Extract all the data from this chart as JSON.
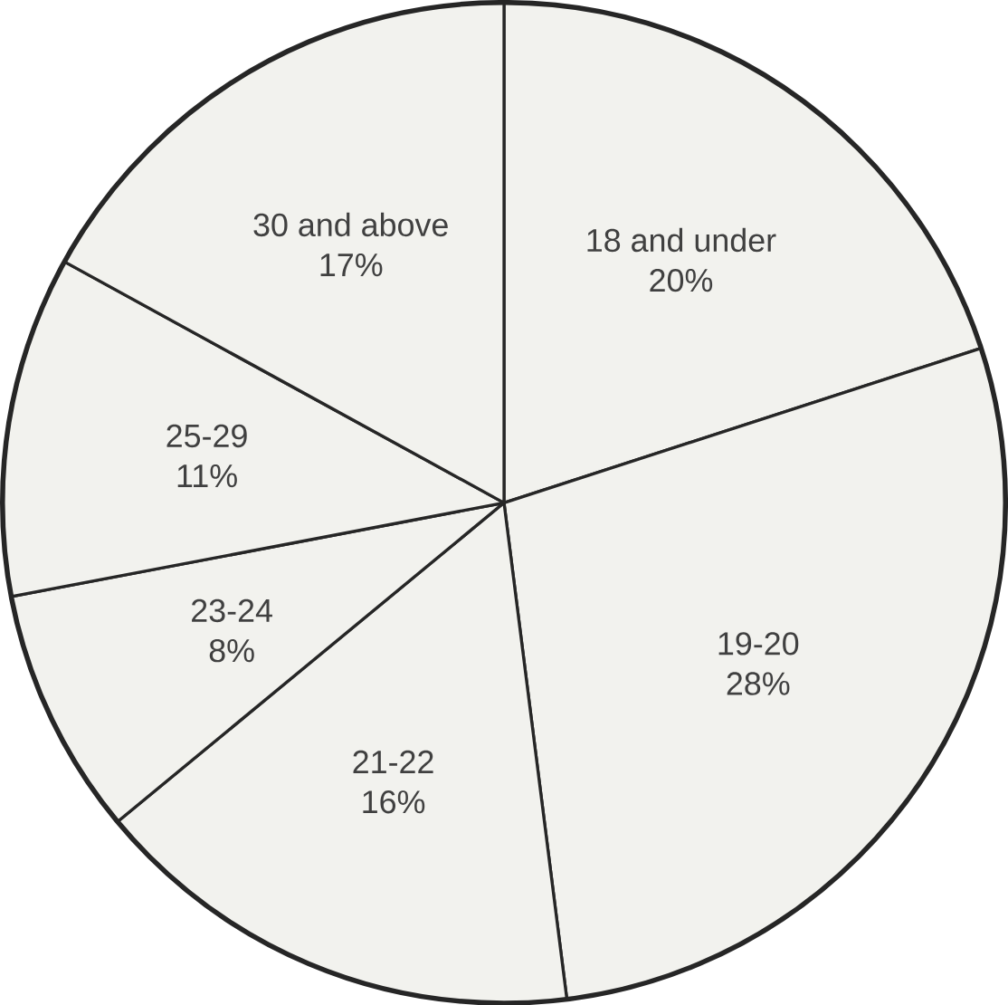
{
  "chart_data": {
    "type": "pie",
    "categories": [
      "18 and under",
      "19-20",
      "21-22",
      "23-24",
      "25-29",
      "30 and above"
    ],
    "values": [
      20,
      28,
      16,
      8,
      11,
      17
    ],
    "value_labels": [
      "20%",
      "28%",
      "16%",
      "8%",
      "11%",
      "17%"
    ],
    "colors": [
      "#f2f2ee",
      "#f2f2ee",
      "#f2f2ee",
      "#f2f2ee",
      "#f2f2ee",
      "#f2f2ee"
    ]
  }
}
